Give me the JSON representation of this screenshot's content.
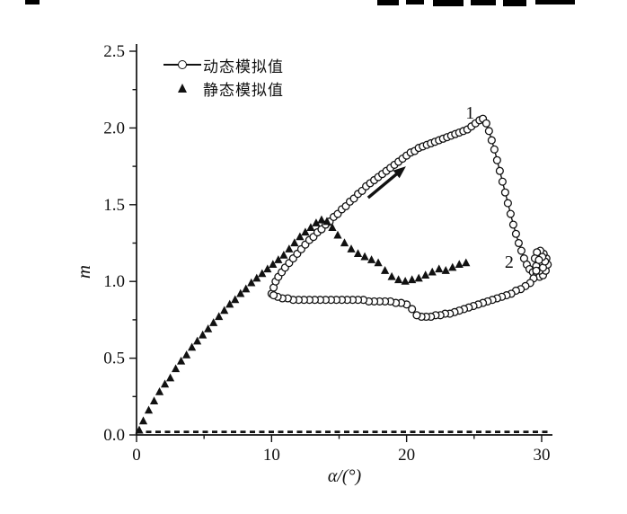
{
  "figure": {
    "background": "#ffffff",
    "ink_color": "#111111"
  },
  "chart_data": {
    "type": "line",
    "title": "",
    "xlabel": "α/(°)",
    "ylabel": "m",
    "xlim": [
      0,
      30.8
    ],
    "ylim": [
      0,
      2.5
    ],
    "grid": false,
    "legend_position": "upper-left-inside",
    "xticks": {
      "major": [
        0,
        10,
        20,
        30
      ],
      "minor": [
        5,
        15,
        25
      ]
    },
    "yticks": {
      "major": [
        0,
        0.5,
        1.0,
        1.5,
        2.0,
        2.5
      ],
      "minor": [
        0.25,
        0.75,
        1.25,
        1.75,
        2.25
      ]
    },
    "series": [
      {
        "id": "dynamic",
        "name": "动态模拟值",
        "marker": "open-circle",
        "line": "solid",
        "points": [
          [
            10.0,
            0.92
          ],
          [
            10.15,
            0.96
          ],
          [
            10.3,
            1.0
          ],
          [
            10.5,
            1.03
          ],
          [
            10.75,
            1.06
          ],
          [
            11.0,
            1.09
          ],
          [
            11.3,
            1.12
          ],
          [
            11.6,
            1.15
          ],
          [
            11.9,
            1.18
          ],
          [
            12.2,
            1.21
          ],
          [
            12.5,
            1.24
          ],
          [
            12.8,
            1.27
          ],
          [
            13.1,
            1.29
          ],
          [
            13.4,
            1.32
          ],
          [
            13.7,
            1.34
          ],
          [
            14.0,
            1.37
          ],
          [
            14.3,
            1.39
          ],
          [
            14.6,
            1.42
          ],
          [
            14.9,
            1.44
          ],
          [
            15.2,
            1.47
          ],
          [
            15.5,
            1.49
          ],
          [
            15.8,
            1.52
          ],
          [
            16.1,
            1.54
          ],
          [
            16.4,
            1.57
          ],
          [
            16.7,
            1.59
          ],
          [
            17.0,
            1.62
          ],
          [
            17.3,
            1.64
          ],
          [
            17.6,
            1.66
          ],
          [
            17.9,
            1.68
          ],
          [
            18.2,
            1.7
          ],
          [
            18.5,
            1.72
          ],
          [
            18.8,
            1.74
          ],
          [
            19.1,
            1.76
          ],
          [
            19.4,
            1.78
          ],
          [
            19.7,
            1.8
          ],
          [
            20.0,
            1.82
          ],
          [
            20.3,
            1.84
          ],
          [
            20.6,
            1.85
          ],
          [
            20.9,
            1.87
          ],
          [
            21.2,
            1.88
          ],
          [
            21.5,
            1.89
          ],
          [
            21.8,
            1.9
          ],
          [
            22.1,
            1.91
          ],
          [
            22.4,
            1.92
          ],
          [
            22.7,
            1.93
          ],
          [
            23.0,
            1.94
          ],
          [
            23.3,
            1.95
          ],
          [
            23.6,
            1.96
          ],
          [
            23.9,
            1.97
          ],
          [
            24.2,
            1.98
          ],
          [
            24.5,
            1.99
          ],
          [
            24.8,
            2.01
          ],
          [
            25.1,
            2.03
          ],
          [
            25.4,
            2.05
          ],
          [
            25.65,
            2.06
          ],
          [
            25.9,
            2.03
          ],
          [
            26.1,
            1.98
          ],
          [
            26.3,
            1.92
          ],
          [
            26.5,
            1.86
          ],
          [
            26.7,
            1.79
          ],
          [
            26.9,
            1.72
          ],
          [
            27.1,
            1.65
          ],
          [
            27.3,
            1.58
          ],
          [
            27.5,
            1.51
          ],
          [
            27.7,
            1.44
          ],
          [
            27.9,
            1.37
          ],
          [
            28.1,
            1.31
          ],
          [
            28.3,
            1.25
          ],
          [
            28.5,
            1.2
          ],
          [
            28.7,
            1.15
          ],
          [
            28.9,
            1.11
          ],
          [
            29.1,
            1.08
          ],
          [
            29.35,
            1.06
          ],
          [
            29.6,
            1.04
          ],
          [
            29.85,
            1.03
          ],
          [
            30.1,
            1.04
          ],
          [
            30.3,
            1.07
          ],
          [
            30.45,
            1.11
          ],
          [
            30.35,
            1.15
          ],
          [
            30.15,
            1.18
          ],
          [
            29.9,
            1.2
          ],
          [
            29.65,
            1.19
          ],
          [
            29.5,
            1.15
          ],
          [
            29.6,
            1.1
          ],
          [
            29.85,
            1.07
          ],
          [
            30.1,
            1.09
          ],
          [
            30.25,
            1.13
          ],
          [
            30.05,
            1.16
          ],
          [
            29.8,
            1.14
          ],
          [
            29.6,
            1.07
          ],
          [
            29.4,
            1.02
          ],
          [
            29.15,
            0.99
          ],
          [
            28.8,
            0.97
          ],
          [
            28.45,
            0.95
          ],
          [
            28.1,
            0.94
          ],
          [
            27.75,
            0.92
          ],
          [
            27.4,
            0.91
          ],
          [
            27.05,
            0.9
          ],
          [
            26.7,
            0.89
          ],
          [
            26.35,
            0.88
          ],
          [
            26.0,
            0.87
          ],
          [
            25.65,
            0.86
          ],
          [
            25.3,
            0.85
          ],
          [
            24.95,
            0.84
          ],
          [
            24.6,
            0.83
          ],
          [
            24.25,
            0.82
          ],
          [
            23.9,
            0.81
          ],
          [
            23.55,
            0.8
          ],
          [
            23.2,
            0.79
          ],
          [
            22.85,
            0.79
          ],
          [
            22.5,
            0.78
          ],
          [
            22.15,
            0.78
          ],
          [
            21.8,
            0.77
          ],
          [
            21.45,
            0.77
          ],
          [
            21.1,
            0.77
          ],
          [
            20.75,
            0.78
          ],
          [
            20.4,
            0.82
          ],
          [
            20.0,
            0.85
          ],
          [
            19.6,
            0.86
          ],
          [
            19.2,
            0.86
          ],
          [
            18.8,
            0.87
          ],
          [
            18.4,
            0.87
          ],
          [
            18.0,
            0.87
          ],
          [
            17.6,
            0.87
          ],
          [
            17.2,
            0.87
          ],
          [
            16.8,
            0.88
          ],
          [
            16.4,
            0.88
          ],
          [
            16.0,
            0.88
          ],
          [
            15.6,
            0.88
          ],
          [
            15.2,
            0.88
          ],
          [
            14.8,
            0.88
          ],
          [
            14.4,
            0.88
          ],
          [
            14.0,
            0.88
          ],
          [
            13.6,
            0.88
          ],
          [
            13.2,
            0.88
          ],
          [
            12.8,
            0.88
          ],
          [
            12.4,
            0.88
          ],
          [
            12.0,
            0.88
          ],
          [
            11.6,
            0.88
          ],
          [
            11.2,
            0.89
          ],
          [
            10.8,
            0.89
          ],
          [
            10.45,
            0.9
          ],
          [
            10.15,
            0.91
          ]
        ]
      },
      {
        "id": "static",
        "name": "静态模拟值",
        "marker": "filled-triangle",
        "line": "none",
        "points": [
          [
            0.2,
            0.03
          ],
          [
            0.5,
            0.09
          ],
          [
            0.9,
            0.16
          ],
          [
            1.3,
            0.22
          ],
          [
            1.7,
            0.28
          ],
          [
            2.1,
            0.33
          ],
          [
            2.5,
            0.37
          ],
          [
            2.9,
            0.43
          ],
          [
            3.3,
            0.48
          ],
          [
            3.7,
            0.52
          ],
          [
            4.1,
            0.57
          ],
          [
            4.5,
            0.61
          ],
          [
            4.9,
            0.65
          ],
          [
            5.3,
            0.69
          ],
          [
            5.7,
            0.73
          ],
          [
            6.1,
            0.77
          ],
          [
            6.5,
            0.81
          ],
          [
            6.9,
            0.85
          ],
          [
            7.3,
            0.88
          ],
          [
            7.7,
            0.92
          ],
          [
            8.1,
            0.95
          ],
          [
            8.5,
            0.99
          ],
          [
            8.9,
            1.02
          ],
          [
            9.3,
            1.05
          ],
          [
            9.7,
            1.08
          ],
          [
            10.1,
            1.11
          ],
          [
            10.5,
            1.14
          ],
          [
            10.9,
            1.17
          ],
          [
            11.3,
            1.21
          ],
          [
            11.7,
            1.25
          ],
          [
            12.1,
            1.29
          ],
          [
            12.5,
            1.32
          ],
          [
            12.9,
            1.35
          ],
          [
            13.3,
            1.38
          ],
          [
            13.7,
            1.4
          ],
          [
            14.1,
            1.39
          ],
          [
            14.5,
            1.35
          ],
          [
            14.9,
            1.3
          ],
          [
            15.4,
            1.25
          ],
          [
            15.9,
            1.21
          ],
          [
            16.4,
            1.18
          ],
          [
            16.9,
            1.16
          ],
          [
            17.4,
            1.14
          ],
          [
            17.9,
            1.12
          ],
          [
            18.4,
            1.07
          ],
          [
            18.9,
            1.03
          ],
          [
            19.4,
            1.01
          ],
          [
            19.9,
            1.0
          ],
          [
            20.4,
            1.01
          ],
          [
            20.9,
            1.02
          ],
          [
            21.4,
            1.04
          ],
          [
            21.9,
            1.06
          ],
          [
            22.4,
            1.08
          ],
          [
            22.9,
            1.07
          ],
          [
            23.4,
            1.09
          ],
          [
            23.9,
            1.11
          ],
          [
            24.4,
            1.12
          ]
        ]
      },
      {
        "id": "baseline",
        "name": "zero-baseline",
        "marker": "none",
        "line": "dashed",
        "points": [
          [
            0,
            0.02
          ],
          [
            30.5,
            0.02
          ]
        ]
      }
    ],
    "annotations": [
      {
        "text": "1",
        "x": 24.7,
        "y": 2.06
      },
      {
        "text": "2",
        "x": 27.6,
        "y": 1.09
      }
    ],
    "arrow": {
      "from": [
        17.15,
        1.545
      ],
      "to": [
        19.95,
        1.75
      ]
    }
  }
}
